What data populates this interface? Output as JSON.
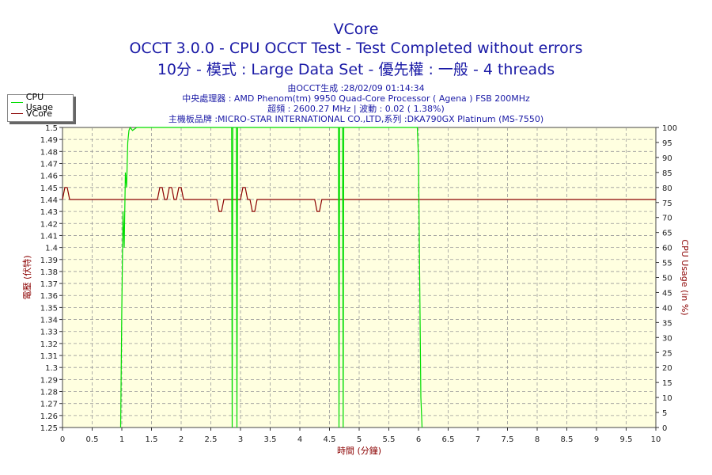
{
  "header": {
    "title": "VCore",
    "line2": "OCCT 3.0.0 - CPU OCCT Test - Test Completed without errors",
    "line3": "10分 - 模式 : Large Data Set - 優先權 : 一般 - 4 threads",
    "info1": "由OCCT生成 :28/02/09 01:14:34",
    "info2": "中央處理器 : AMD Phenom(tm) 9950 Quad-Core Processor ( Agena ) FSB 200MHz",
    "info3": "超頻 : 2600.27 MHz | 波動 : 0.02 ( 1.38%)",
    "info4": "主機板品牌 :MICRO-STAR INTERNATIONAL CO.,LTD,系列 :DKA790GX Platinum (MS-7550)"
  },
  "legend": {
    "items": [
      {
        "label": "CPU Usage",
        "color": "#00dd00"
      },
      {
        "label": "VCore",
        "color": "#8b0000"
      }
    ]
  },
  "colors": {
    "plot_bg": "#ffffe0",
    "grid": "#999999",
    "vcore": "#8b0000",
    "cpu": "#00dd00",
    "title": "#1a1aa6",
    "left_axis_title": "#8b0000",
    "right_axis_title": "#8b0000",
    "x_axis_title": "#8b0000"
  },
  "chart_data": {
    "type": "line",
    "title": "VCore",
    "xlabel": "時間 (分鐘)",
    "ylabel_left": "電壓 (伏特)",
    "ylabel_right": "CPU Usage (in %)",
    "xlim": [
      0,
      10
    ],
    "ylim_left": [
      1.25,
      1.5
    ],
    "ylim_right": [
      0,
      100
    ],
    "grid": true,
    "legend_position": "top-left",
    "x_ticks": [
      "0",
      "0.5",
      "1",
      "1.5",
      "2",
      "2.5",
      "3",
      "3.5",
      "4",
      "4.5",
      "5",
      "5.5",
      "6",
      "6.5",
      "7",
      "7.5",
      "8",
      "8.5",
      "9",
      "9.5",
      "10"
    ],
    "y_ticks_left": [
      "1.25",
      "1.26",
      "1.27",
      "1.28",
      "1.29",
      "1.3",
      "1.31",
      "1.32",
      "1.33",
      "1.34",
      "1.35",
      "1.36",
      "1.37",
      "1.38",
      "1.39",
      "1.4",
      "1.41",
      "1.42",
      "1.43",
      "1.44",
      "1.45",
      "1.46",
      "1.47",
      "1.48",
      "1.49",
      "1.5"
    ],
    "y_ticks_right": [
      "0",
      "5",
      "10",
      "15",
      "20",
      "25",
      "30",
      "35",
      "40",
      "45",
      "50",
      "55",
      "60",
      "65",
      "70",
      "75",
      "80",
      "85",
      "90",
      "95",
      "100"
    ],
    "series": [
      {
        "name": "VCore",
        "axis": "left",
        "x": [
          0,
          0.04,
          0.08,
          0.12,
          9.99,
          1.6,
          1.64,
          1.68,
          1.72,
          1.76,
          1.8,
          1.84,
          1.88,
          1.92,
          1.96,
          2.0,
          2.04,
          2.08,
          2.12,
          2.16,
          2.6,
          2.64,
          2.68,
          2.72,
          2.76,
          3.0,
          3.04,
          3.08,
          3.12,
          3.16,
          3.2,
          3.24,
          3.28,
          3.32,
          4.25,
          4.29,
          4.33,
          4.37,
          4.41,
          10
        ],
        "y": [
          1.44,
          1.45,
          1.45,
          1.44,
          1.44,
          1.44,
          1.45,
          1.45,
          1.44,
          1.44,
          1.45,
          1.45,
          1.44,
          1.44,
          1.45,
          1.45,
          1.44,
          1.44,
          1.44,
          1.44,
          1.44,
          1.43,
          1.43,
          1.44,
          1.44,
          1.44,
          1.45,
          1.45,
          1.44,
          1.44,
          1.43,
          1.43,
          1.44,
          1.44,
          1.44,
          1.43,
          1.43,
          1.44,
          1.44,
          1.44
        ]
      },
      {
        "name": "CPU Usage",
        "axis": "right",
        "x": [
          0.98,
          1.0,
          1.02,
          1.04,
          1.06,
          1.08,
          1.1,
          1.12,
          1.14,
          1.18,
          1.25,
          2.85,
          2.86,
          2.87,
          2.93,
          2.94,
          2.95,
          3.0,
          4.65,
          4.66,
          4.67,
          4.72,
          4.73,
          4.74,
          4.8,
          5.98,
          6.0,
          6.02,
          6.04,
          6.06
        ],
        "y": [
          0,
          40,
          72,
          60,
          85,
          80,
          95,
          99,
          100,
          99,
          100,
          100,
          0,
          100,
          100,
          0,
          100,
          100,
          100,
          0,
          100,
          100,
          0,
          100,
          100,
          100,
          90,
          50,
          10,
          0
        ]
      }
    ]
  }
}
